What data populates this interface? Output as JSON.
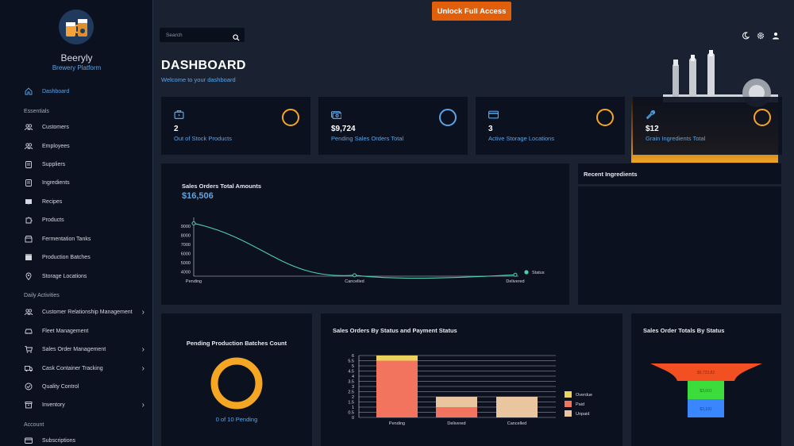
{
  "brand": {
    "name": "Beeryly",
    "subtitle": "Brewery Platform"
  },
  "sidebar": {
    "dashboard": {
      "label": "Dashboard",
      "icon": "home-icon"
    },
    "sections": [
      {
        "label": "Essentials"
      },
      {
        "label": "Daily Activities"
      },
      {
        "label": "Account"
      }
    ],
    "essentials": [
      {
        "label": "Customers",
        "icon": "users-icon"
      },
      {
        "label": "Employees",
        "icon": "users-icon"
      },
      {
        "label": "Suppliers",
        "icon": "clipboard-icon"
      },
      {
        "label": "Ingredients",
        "icon": "clipboard-icon"
      },
      {
        "label": "Recipes",
        "icon": "book-icon"
      },
      {
        "label": "Products",
        "icon": "puzzle-icon"
      },
      {
        "label": "Fermentation Tanks",
        "icon": "store-icon"
      },
      {
        "label": "Production Batches",
        "icon": "box-icon"
      },
      {
        "label": "Storage Locations",
        "icon": "pin-icon"
      }
    ],
    "daily": [
      {
        "label": "Customer Relationship Management",
        "icon": "users-icon",
        "expandable": true
      },
      {
        "label": "Fleet Management",
        "icon": "car-icon",
        "expandable": false
      },
      {
        "label": "Sales Order Management",
        "icon": "cart-icon",
        "expandable": true
      },
      {
        "label": "Cask Container Tracking",
        "icon": "truck-icon",
        "expandable": true
      },
      {
        "label": "Quality Control",
        "icon": "check-circle-icon",
        "expandable": false
      },
      {
        "label": "Inventory",
        "icon": "archive-icon",
        "expandable": true
      }
    ],
    "account": [
      {
        "label": "Subscriptions",
        "icon": "card-icon"
      }
    ]
  },
  "topbar": {
    "unlock_label": "Unlock Full Access",
    "search_placeholder": "Search"
  },
  "header": {
    "title": "DASHBOARD",
    "subtitle": "Welcome to your dashboard"
  },
  "stats": [
    {
      "value": "2",
      "label": "Out of Stock Products",
      "icon": "briefcase-icon",
      "ring": "#f5a623"
    },
    {
      "value": "$9,724",
      "label": "Pending Sales Orders Total",
      "icon": "money-icon",
      "ring": "#5aa5e6"
    },
    {
      "value": "3",
      "label": "Active Storage Locations",
      "icon": "card-icon",
      "ring": "#f5a623"
    },
    {
      "value": "$12",
      "label": "Grain Ingredients Total",
      "icon": "wrench-icon",
      "ring": "#f5a623"
    }
  ],
  "sales_panel": {
    "title": "Sales Orders Total Amounts",
    "amount": "$16,506"
  },
  "recent_panel": {
    "title": "Recent Ingredients"
  },
  "batches_panel": {
    "title": "Pending Production Batches Count",
    "caption": "0 of 10 Pending",
    "pending": 0,
    "total": 10
  },
  "status_panel": {
    "title": "Sales Orders By Status and Payment Status"
  },
  "funnel_panel": {
    "title": "Sales Order Totals By Status"
  },
  "chart_data": [
    {
      "type": "line",
      "categories": [
        "Pending",
        "Cancelled",
        "Delivered"
      ],
      "series": [
        {
          "name": "Status",
          "values": [
            9300,
            3600,
            3650
          ],
          "color": "#4ecdb4"
        }
      ],
      "yticks": [
        4000,
        5000,
        6000,
        7000,
        8000,
        9000
      ],
      "ylim": [
        3500,
        9600
      ]
    },
    {
      "type": "bar",
      "stacked": true,
      "categories": [
        "Pending",
        "Delivered",
        "Cancelled"
      ],
      "series": [
        {
          "name": "Overdue",
          "values": [
            0.5,
            0,
            0
          ],
          "color": "#ecd35e"
        },
        {
          "name": "Paid",
          "values": [
            5.5,
            1,
            0
          ],
          "color": "#f2735e"
        },
        {
          "name": "Unpaid",
          "values": [
            0,
            1,
            2
          ],
          "color": "#e9c5a0"
        }
      ],
      "stack_order": [
        "Paid",
        "Unpaid",
        "Overdue"
      ],
      "yticks": [
        "0",
        "0.5",
        "1",
        "1.5",
        "2",
        "2.5",
        "3",
        "3.5",
        "4",
        "4.5",
        "5",
        "5.5",
        "6"
      ],
      "ylim": [
        0,
        6
      ]
    },
    {
      "type": "funnel",
      "values": [
        {
          "label": "$9,723.82",
          "value": 9723.82,
          "color": "#f25022"
        },
        {
          "label": "$3,601",
          "value": 3601,
          "color": "#3ddc3d"
        },
        {
          "label": "$3,181",
          "value": 3181,
          "color": "#3a86ff"
        }
      ]
    }
  ]
}
